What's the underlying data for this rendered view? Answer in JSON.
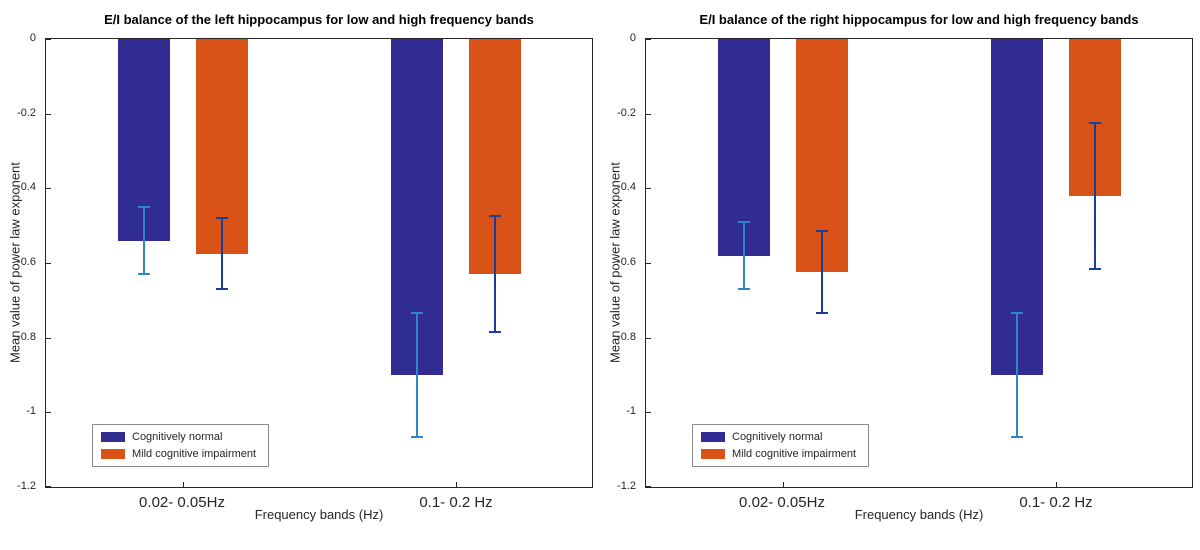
{
  "page": {
    "background": "#ffffff"
  },
  "chart_data": [
    {
      "type": "bar",
      "title": "E/I balance of the left hippocampus for low and high frequency bands",
      "xlabel": "Frequency bands (Hz)",
      "ylabel": "Mean value of power law exponent",
      "categories": [
        "0.02- 0.05Hz",
        "0.1- 0.2 Hz"
      ],
      "ylim": [
        -1.2,
        0
      ],
      "yticks": [
        0,
        -0.2,
        -0.4,
        -0.6,
        -0.8,
        -1,
        -1.2
      ],
      "grid": false,
      "legend_position": "lower-left",
      "series": [
        {
          "name": "Cognitively normal",
          "color": "#302c92",
          "errorbar_color": "#2e86c8",
          "values": [
            -0.54,
            -0.9
          ],
          "errors": [
            0.09,
            0.165
          ]
        },
        {
          "name": "Mild cognitive impairment",
          "color": "#d95319",
          "errorbar_color": "#1b3e9b",
          "values": [
            -0.575,
            -0.63
          ],
          "errors": [
            0.095,
            0.155
          ]
        }
      ]
    },
    {
      "type": "bar",
      "title": "E/I balance of the right hippocampus for low and high frequency bands",
      "xlabel": "Frequency bands (Hz)",
      "ylabel": "Mean value of power law exponent",
      "categories": [
        "0.02- 0.05Hz",
        "0.1- 0.2 Hz"
      ],
      "ylim": [
        -1.2,
        0
      ],
      "yticks": [
        0,
        -0.2,
        -0.4,
        -0.6,
        -0.8,
        -1,
        -1.2
      ],
      "grid": false,
      "legend_position": "lower-left",
      "series": [
        {
          "name": "Cognitively normal",
          "color": "#302c92",
          "errorbar_color": "#2e86c8",
          "values": [
            -0.58,
            -0.9
          ],
          "errors": [
            0.09,
            0.165
          ]
        },
        {
          "name": "Mild cognitive impairment",
          "color": "#d95319",
          "errorbar_color": "#1b3e9b",
          "values": [
            -0.625,
            -0.42
          ],
          "errors": [
            0.11,
            0.195
          ]
        }
      ]
    }
  ]
}
